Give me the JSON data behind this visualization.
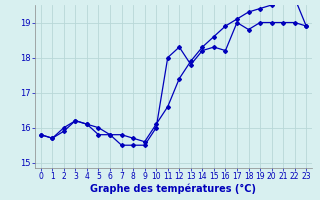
{
  "title": "Graphe des températures (°C)",
  "background_color": "#d8f0f0",
  "grid_color": "#b8d8d8",
  "line_color": "#0000bb",
  "series1_x": [
    0,
    1,
    2,
    3,
    4,
    5,
    6,
    7,
    8,
    9,
    10,
    11,
    12,
    13,
    14,
    15,
    16,
    17,
    18,
    19,
    20,
    21,
    22,
    23
  ],
  "series1_y": [
    15.8,
    15.7,
    15.9,
    16.2,
    16.1,
    15.8,
    15.8,
    15.5,
    15.5,
    15.5,
    16.0,
    18.0,
    18.3,
    17.8,
    18.2,
    18.3,
    18.2,
    19.0,
    18.8,
    19.0,
    19.0,
    19.0,
    19.0,
    18.9
  ],
  "series2_x": [
    0,
    1,
    2,
    3,
    4,
    5,
    6,
    7,
    8,
    9,
    10,
    11,
    12,
    13,
    14,
    15,
    16,
    17,
    18,
    19,
    20,
    21,
    22,
    23
  ],
  "series2_y": [
    15.8,
    15.7,
    16.0,
    16.2,
    16.1,
    16.0,
    15.8,
    15.8,
    15.7,
    15.6,
    16.1,
    16.6,
    17.4,
    17.9,
    18.3,
    18.6,
    18.9,
    19.1,
    19.3,
    19.4,
    19.5,
    19.6,
    19.7,
    18.9
  ],
  "xlim": [
    -0.5,
    23.5
  ],
  "ylim": [
    14.85,
    19.5
  ],
  "yticks": [
    15,
    16,
    17,
    18,
    19
  ],
  "xticks": [
    0,
    1,
    2,
    3,
    4,
    5,
    6,
    7,
    8,
    9,
    10,
    11,
    12,
    13,
    14,
    15,
    16,
    17,
    18,
    19,
    20,
    21,
    22,
    23
  ],
  "xlabel_fontsize": 7,
  "tick_fontsize": 5.5,
  "ytick_fontsize": 6,
  "linewidth": 0.9,
  "markersize": 2.0
}
